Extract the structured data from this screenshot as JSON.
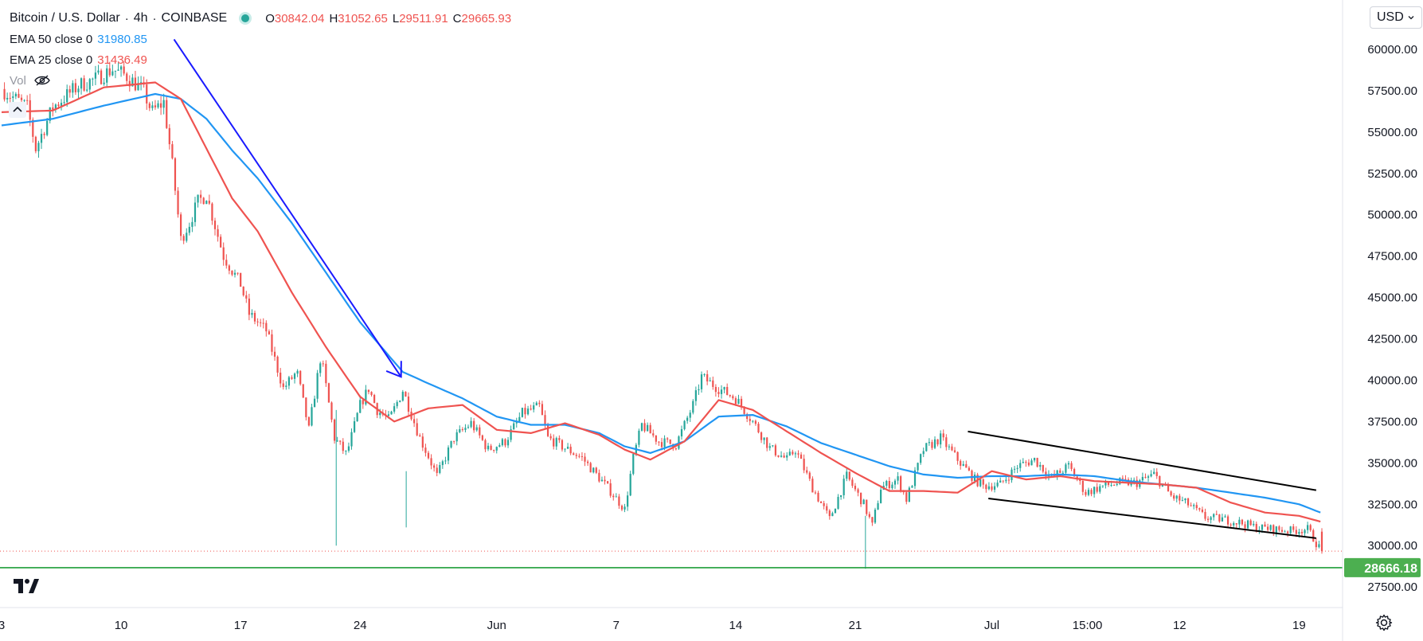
{
  "header": {
    "symbol": "Bitcoin / U.S. Dollar",
    "interval": "4h",
    "exchange": "COINBASE",
    "ohlc": [
      {
        "label": "O",
        "value": "30842.04"
      },
      {
        "label": "H",
        "value": "31052.65"
      },
      {
        "label": "L",
        "value": "29511.91"
      },
      {
        "label": "C",
        "value": "29665.93"
      }
    ],
    "ema50_label": "EMA 50 close 0",
    "ema50_value": "31980.85",
    "ema25_label": "EMA 25 close 0",
    "ema25_value": "31436.49",
    "vol_label": "Vol"
  },
  "currency_button": "USD",
  "price_axis": {
    "top_partial_label": "6 0",
    "labels": [
      "60000.00",
      "57500.00",
      "55000.00",
      "52500.00",
      "50000.00",
      "47500.00",
      "45000.00",
      "42500.00",
      "40000.00",
      "37500.00",
      "35000.00",
      "32500.00",
      "30000.00",
      "27500.00"
    ],
    "highlight_label": "28666.18",
    "highlight_color": "#4caf50"
  },
  "colors": {
    "up": "#26a69a",
    "down": "#ef5350",
    "ema50": "#2196f3",
    "ema25": "#ef5350",
    "arrow": "#1a1aff",
    "channel": "#000000",
    "support": "#1e9e3a"
  },
  "chart_data": {
    "type": "line",
    "title": "Bitcoin / U.S. Dollar, 4h, COINBASE",
    "x_tick_labels": [
      "3",
      "10",
      "17",
      "24",
      "Jun",
      "7",
      "14",
      "21",
      "Jul",
      "15:00",
      "12",
      "19"
    ],
    "x_tick_days": [
      0,
      7,
      14,
      21,
      29,
      36,
      43,
      50,
      58,
      63.6,
      69,
      76
    ],
    "x_range_days": [
      0,
      78.5
    ],
    "ylim": [
      26400,
      62500
    ],
    "close_path": {
      "name": "BTC close (approx.)",
      "x_days": [
        0,
        1.5,
        2,
        3,
        4.5,
        5.5,
        6.5,
        7.3,
        8.3,
        8.8,
        9.5,
        10,
        10.5,
        11,
        11.5,
        12,
        13,
        14,
        14.5,
        15.5,
        16.5,
        17.3,
        18,
        18.7,
        19.5,
        20.2,
        21,
        21.5,
        22,
        22.7,
        23.5,
        24.5,
        25,
        25.5,
        26.5,
        27.5,
        28.5,
        29.5,
        30.5,
        31.5,
        32,
        33,
        34,
        35.5,
        36.5,
        37,
        37.5,
        38.5,
        39.5,
        40.5,
        41,
        42,
        43,
        44,
        45,
        46,
        46.5,
        47.5,
        48.5,
        49.5,
        50.5,
        51,
        51.5,
        52.5,
        53,
        54,
        55,
        56,
        57,
        57.5,
        58.5,
        59.5,
        60.5,
        61.5,
        62.5,
        63.5,
        64.5,
        65.5,
        66.5,
        67.5,
        68.5,
        69.5,
        70.5,
        71.5,
        72.5,
        73.5,
        74.5,
        75.5,
        76.5,
        77.3
      ],
      "values": [
        57600,
        56500,
        54000,
        56500,
        57800,
        58200,
        58800,
        58400,
        57500,
        56200,
        56800,
        53000,
        48500,
        49500,
        50800,
        51200,
        47500,
        45800,
        44000,
        43000,
        39500,
        40500,
        37000,
        41500,
        36500,
        35500,
        38500,
        39500,
        38200,
        37600,
        39400,
        36500,
        35400,
        34200,
        36500,
        37400,
        35800,
        36300,
        38000,
        38400,
        36500,
        35900,
        35300,
        33500,
        32200,
        35300,
        37300,
        36300,
        36100,
        38500,
        40200,
        39500,
        38900,
        37500,
        35900,
        35200,
        35800,
        33500,
        31600,
        34200,
        32500,
        31200,
        33500,
        34000,
        32800,
        35800,
        36500,
        35200,
        34000,
        33600,
        33700,
        34800,
        35200,
        34100,
        34800,
        33200,
        33600,
        33800,
        33800,
        34300,
        33000,
        32500,
        31700,
        31600,
        31400,
        31100,
        31000,
        30900,
        31000,
        29670
      ]
    },
    "series": [
      {
        "name": "EMA 50 close 0",
        "last_value": 31980.85,
        "x_days": [
          0,
          3,
          6,
          9,
          10.5,
          12,
          13.5,
          15,
          17,
          19,
          21,
          23.5,
          25,
          27,
          29,
          31,
          33,
          35,
          36.5,
          38,
          40,
          42,
          44,
          46,
          48,
          50,
          52,
          54,
          56,
          58,
          60,
          62,
          64,
          66,
          68,
          70,
          72,
          74,
          76,
          77.3
        ],
        "values": [
          55400,
          55800,
          56600,
          57300,
          57000,
          55800,
          53900,
          52200,
          49500,
          46500,
          43500,
          40500,
          39800,
          38900,
          37800,
          37300,
          37300,
          36800,
          36000,
          35600,
          36300,
          37800,
          37900,
          37200,
          36200,
          35500,
          34800,
          34300,
          34100,
          34200,
          34200,
          34300,
          34200,
          33900,
          33700,
          33500,
          33200,
          32900,
          32500,
          31981
        ]
      },
      {
        "name": "EMA 25 close 0",
        "last_value": 31436.49,
        "x_days": [
          0,
          3,
          6,
          9,
          10.5,
          12,
          13.5,
          15,
          17,
          19,
          21,
          23,
          25,
          27,
          29,
          31,
          33,
          35,
          36.5,
          38,
          40,
          42,
          44,
          46,
          48,
          50,
          52,
          54,
          56,
          58,
          60,
          62,
          64,
          66,
          68,
          70,
          72,
          74,
          76,
          77.3
        ],
        "values": [
          56200,
          56300,
          57700,
          58000,
          57000,
          54000,
          51000,
          49000,
          45300,
          42000,
          39000,
          37500,
          38300,
          38500,
          37000,
          36800,
          37400,
          36700,
          35800,
          35200,
          36300,
          38800,
          38200,
          36900,
          35600,
          34400,
          33300,
          33300,
          33200,
          34500,
          34000,
          34200,
          33900,
          33800,
          33700,
          33500,
          32600,
          32000,
          31800,
          31436
        ]
      }
    ],
    "current_price": 29665.93,
    "support_level": 28666.18,
    "annotations": {
      "downtrend_arrow": {
        "from": [
          10.1,
          60600
        ],
        "to": [
          23.4,
          40200
        ]
      },
      "channel_upper": {
        "from": [
          56.6,
          36900
        ],
        "to": [
          77,
          33350
        ]
      },
      "channel_lower": {
        "from": [
          57.8,
          32850
        ],
        "to": [
          77,
          30450
        ]
      }
    }
  }
}
